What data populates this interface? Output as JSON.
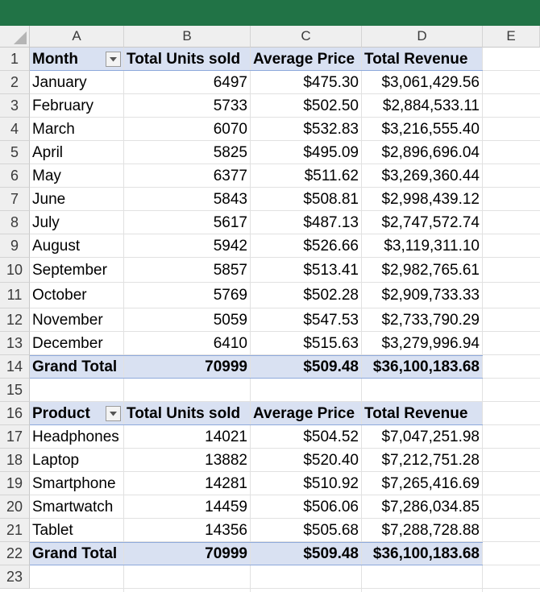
{
  "columns": [
    "A",
    "B",
    "C",
    "D",
    "E"
  ],
  "rows": [
    "1",
    "2",
    "3",
    "4",
    "5",
    "6",
    "7",
    "8",
    "9",
    "10",
    "11",
    "12",
    "13",
    "14",
    "15",
    "16",
    "17",
    "18",
    "19",
    "20",
    "21",
    "22",
    "23"
  ],
  "colors": {
    "accent": "#217346",
    "pivot_header": "#d9e1f2",
    "pivot_border": "#8ea9db"
  },
  "month_table": {
    "headers": [
      "Month",
      "Total Units  sold",
      "Average  Price",
      "Total Revenue"
    ],
    "rows": [
      [
        "January",
        "6497",
        "$475.30",
        "$3,061,429.56"
      ],
      [
        "February",
        "5733",
        "$502.50",
        "$2,884,533.11"
      ],
      [
        "March",
        "6070",
        "$532.83",
        "$3,216,555.40"
      ],
      [
        "April",
        "5825",
        "$495.09",
        "$2,896,696.04"
      ],
      [
        "May",
        "6377",
        "$511.62",
        "$3,269,360.44"
      ],
      [
        "June",
        "5843",
        "$508.81",
        "$2,998,439.12"
      ],
      [
        "July",
        "5617",
        "$487.13",
        "$2,747,572.74"
      ],
      [
        "August",
        "5942",
        "$526.66",
        "$3,119,311.10"
      ],
      [
        "September",
        "5857",
        "$513.41",
        "$2,982,765.61"
      ],
      [
        "October",
        "5769",
        "$502.28",
        "$2,909,733.33"
      ],
      [
        "November",
        "5059",
        "$547.53",
        "$2,733,790.29"
      ],
      [
        "December",
        "6410",
        "$515.63",
        "$3,279,996.94"
      ]
    ],
    "total": [
      "Grand Total",
      "70999",
      "$509.48",
      "$36,100,183.68"
    ]
  },
  "product_table": {
    "headers": [
      "Product",
      "Total Units sold",
      "Average Price",
      "Total Revenue"
    ],
    "rows": [
      [
        "Headphones",
        "14021",
        "$504.52",
        "$7,047,251.98"
      ],
      [
        "Laptop",
        "13882",
        "$520.40",
        "$7,212,751.28"
      ],
      [
        "Smartphone",
        "14281",
        "$510.92",
        "$7,265,416.69"
      ],
      [
        "Smartwatch",
        "14459",
        "$506.06",
        "$7,286,034.85"
      ],
      [
        "Tablet",
        "14356",
        "$505.68",
        "$7,288,728.88"
      ]
    ],
    "total": [
      "Grand Total",
      "70999",
      "$509.48",
      "$36,100,183.68"
    ]
  }
}
